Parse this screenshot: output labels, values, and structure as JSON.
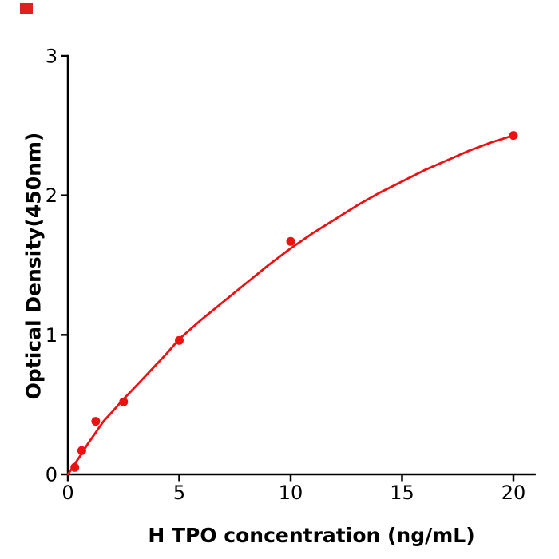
{
  "watermark": {
    "color": "#dd2222"
  },
  "chart_data": {
    "type": "scatter",
    "title": "",
    "xlabel": "H  TPO concentration (ng/mL)",
    "ylabel": "Optical Density(450nm)",
    "xlim": [
      0,
      21
    ],
    "ylim": [
      0,
      3
    ],
    "xticks": [
      0,
      5,
      10,
      15,
      20
    ],
    "yticks": [
      0,
      1,
      2,
      3
    ],
    "grid": false,
    "legend": "none",
    "axis_color": "#000000",
    "background_color": "#ffffff",
    "series": [
      {
        "name": "standard-points",
        "type": "scatter",
        "color": "#ee1111",
        "marker_radius": 5.5,
        "points": [
          [
            0.3125,
            0.05
          ],
          [
            0.625,
            0.17
          ],
          [
            1.25,
            0.38
          ],
          [
            2.5,
            0.52
          ],
          [
            5,
            0.96
          ],
          [
            10,
            1.67
          ],
          [
            20,
            2.43
          ]
        ]
      },
      {
        "name": "fitted-curve",
        "type": "line",
        "color": "#ee1111",
        "line_width": 2.8,
        "points": [
          [
            0,
            0.0
          ],
          [
            0.15,
            0.035
          ],
          [
            0.3125,
            0.075
          ],
          [
            0.625,
            0.15
          ],
          [
            0.9,
            0.22
          ],
          [
            1.25,
            0.3
          ],
          [
            1.6,
            0.38
          ],
          [
            2.0,
            0.45
          ],
          [
            2.5,
            0.54
          ],
          [
            3.1,
            0.64
          ],
          [
            3.75,
            0.75
          ],
          [
            4.4,
            0.86
          ],
          [
            5,
            0.97
          ],
          [
            6,
            1.11
          ],
          [
            7,
            1.24
          ],
          [
            8,
            1.37
          ],
          [
            9,
            1.5
          ],
          [
            10,
            1.62
          ],
          [
            11,
            1.73
          ],
          [
            12,
            1.83
          ],
          [
            13,
            1.93
          ],
          [
            14,
            2.02
          ],
          [
            15,
            2.1
          ],
          [
            16,
            2.18
          ],
          [
            17,
            2.25
          ],
          [
            18,
            2.32
          ],
          [
            19,
            2.38
          ],
          [
            20,
            2.43
          ]
        ]
      }
    ]
  }
}
